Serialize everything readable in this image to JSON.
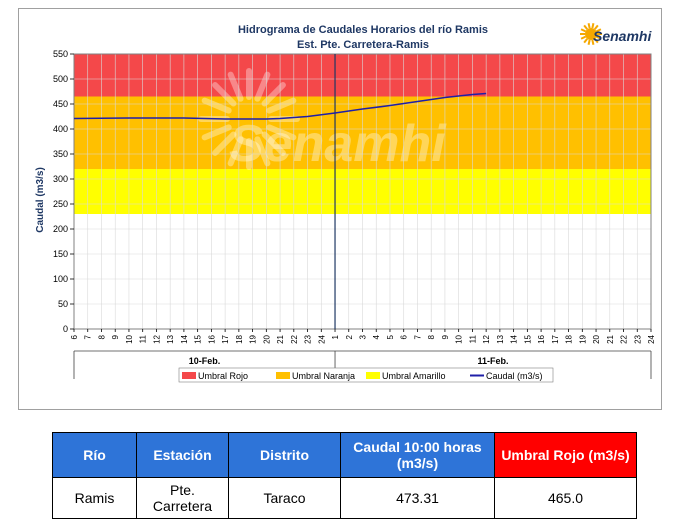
{
  "chart_data": {
    "type": "line",
    "title": "Hidrograma de Caudales Horarios del río Ramis",
    "subtitle": "Est. Pte. Carretera-Ramis",
    "ylabel": "Caudal  (m3/s)",
    "ylim": [
      0,
      550
    ],
    "yticks": [
      0,
      50,
      100,
      150,
      200,
      250,
      300,
      350,
      400,
      450,
      500,
      550
    ],
    "x_ticks": [
      "6",
      "7",
      "8",
      "9",
      "10",
      "11",
      "12",
      "13",
      "14",
      "15",
      "16",
      "17",
      "18",
      "19",
      "20",
      "21",
      "22",
      "23",
      "24",
      "1",
      "2",
      "3",
      "4",
      "5",
      "6",
      "7",
      "8",
      "9",
      "10",
      "11",
      "12",
      "13",
      "14",
      "15",
      "16",
      "17",
      "18",
      "19",
      "20",
      "21",
      "22",
      "23",
      "24"
    ],
    "day_labels": [
      "10-Feb.",
      "11-Feb."
    ],
    "thresholds": [
      {
        "name": "Umbral Rojo",
        "from": 465,
        "to": 550,
        "color": "#f4484a"
      },
      {
        "name": "Umbral Naranja",
        "from": 320,
        "to": 465,
        "color": "#ffc000"
      },
      {
        "name": "Umbral Amarillo",
        "from": 230,
        "to": 320,
        "color": "#ffff00"
      }
    ],
    "series": [
      {
        "name": "Caudal (m3/s)",
        "color": "#1f1fa8",
        "points": [
          [
            0,
            421
          ],
          [
            4,
            422
          ],
          [
            8,
            422
          ],
          [
            11,
            420
          ],
          [
            14,
            420
          ],
          [
            15,
            421
          ],
          [
            17,
            425
          ],
          [
            19,
            432
          ],
          [
            21,
            440
          ],
          [
            23,
            447
          ],
          [
            25,
            455
          ],
          [
            27,
            463
          ],
          [
            29,
            469
          ],
          [
            30,
            471
          ]
        ]
      }
    ],
    "vertical_marker_index": 19,
    "grid": true,
    "legend_position": "bottom",
    "watermark": "Senamhi"
  },
  "logo": {
    "text": "Senamhi",
    "sun_color": "#f5a800",
    "text_color": "#1f3864"
  },
  "table": {
    "headers": [
      "Río",
      "Estación",
      "Distrito",
      "Caudal  10:00 horas (m3/s)",
      "Umbral Rojo (m3/s)"
    ],
    "rows": [
      [
        "Ramis",
        "Pte. Carretera",
        "Taraco",
        "473.31",
        "465.0"
      ]
    ]
  }
}
